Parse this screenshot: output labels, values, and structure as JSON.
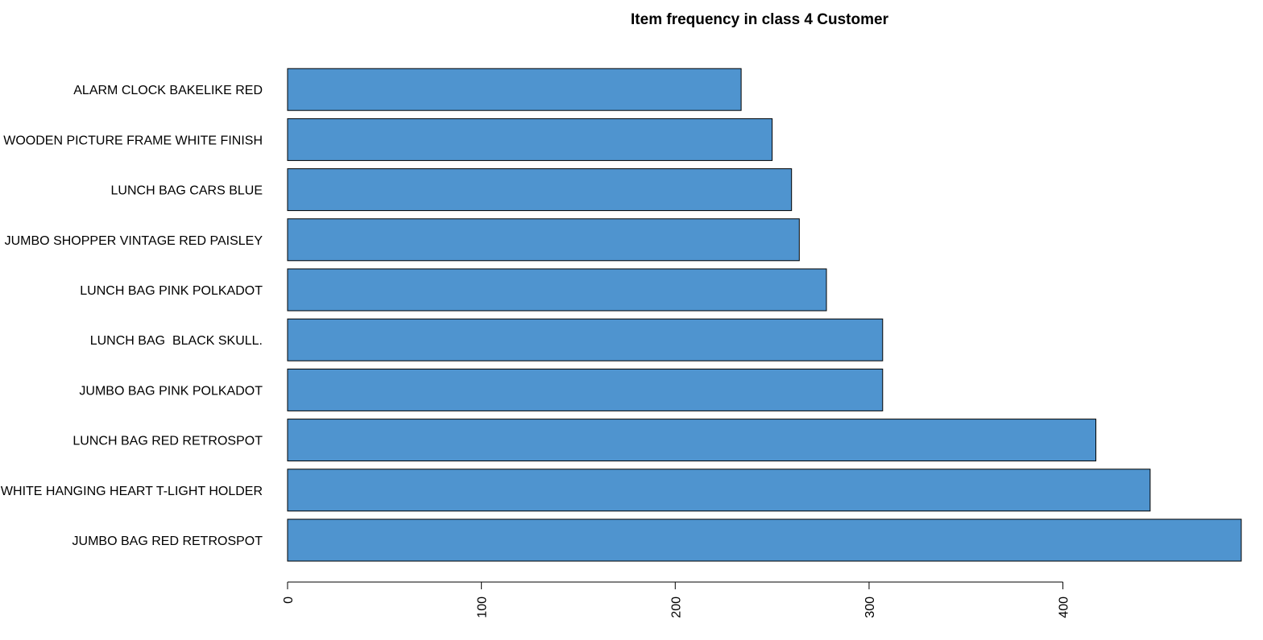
{
  "chart_data": {
    "type": "bar",
    "orientation": "horizontal",
    "title": "Item frequency in class 4 Customer",
    "xlabel": "",
    "ylabel": "",
    "categories": [
      "JUMBO BAG RED RETROSPOT",
      "WHITE HANGING HEART T-LIGHT HOLDER",
      "LUNCH BAG RED RETROSPOT",
      "JUMBO BAG PINK POLKADOT",
      "LUNCH BAG  BLACK SKULL.",
      "LUNCH BAG PINK POLKADOT",
      "JUMBO SHOPPER VINTAGE RED PAISLEY",
      "LUNCH BAG CARS BLUE",
      "WOODEN PICTURE FRAME WHITE FINISH",
      "ALARM CLOCK BAKELIKE RED"
    ],
    "values": [
      492,
      445,
      417,
      307,
      307,
      278,
      264,
      260,
      250,
      234
    ],
    "xlim": [
      0,
      492
    ],
    "xticks": [
      0,
      100,
      200,
      300,
      400
    ],
    "bar_color": "#4f94cf",
    "grid": false
  }
}
